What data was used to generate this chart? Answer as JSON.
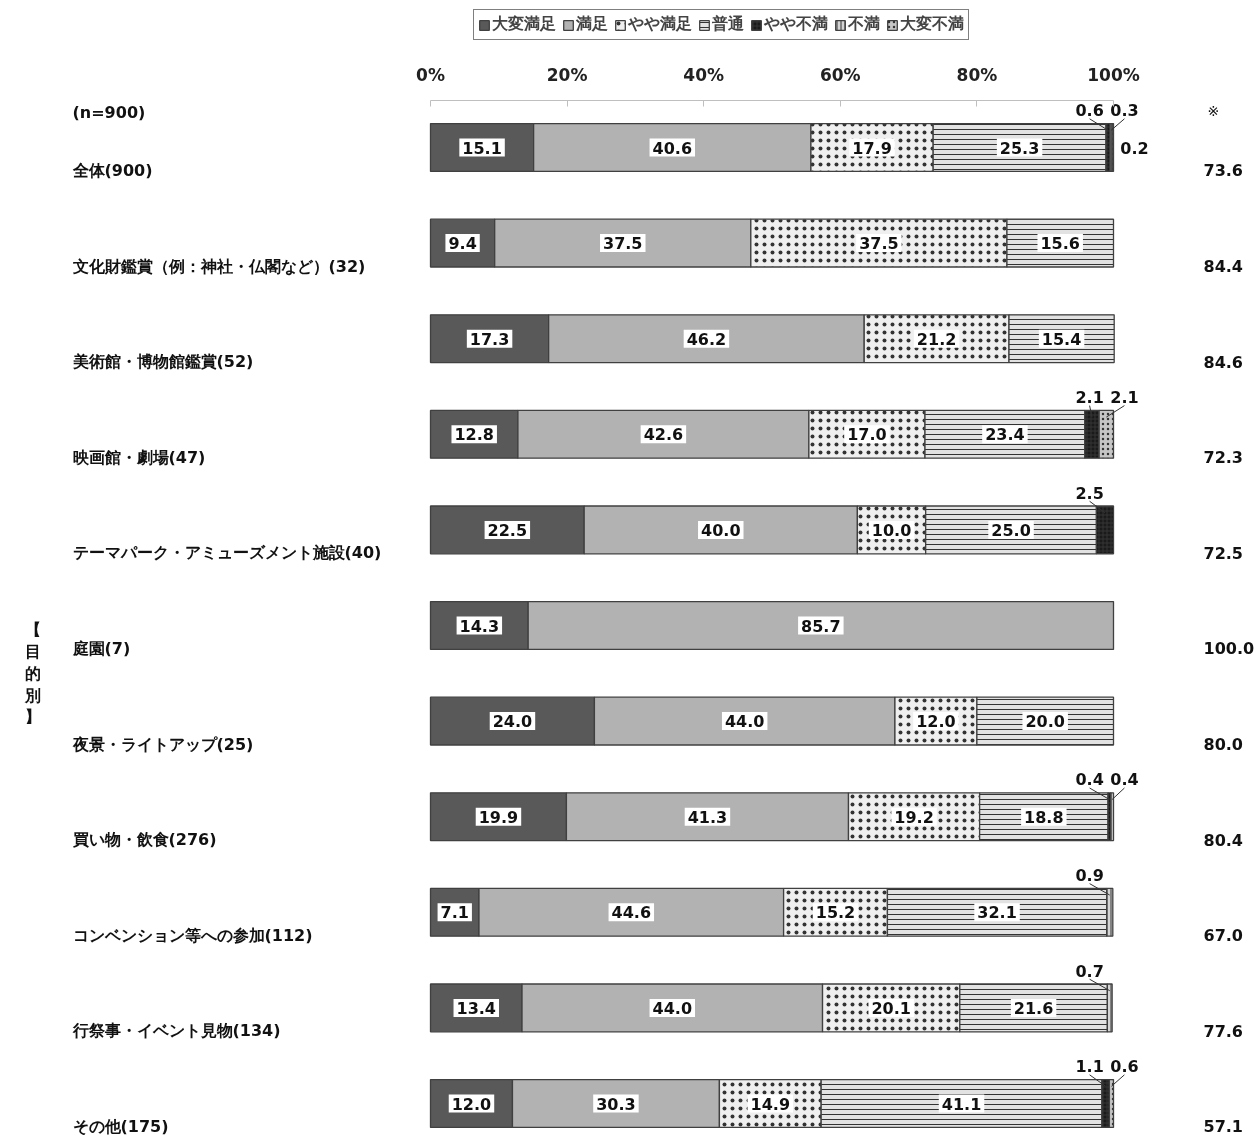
{
  "chart_data": {
    "type": "bar",
    "orientation": "horizontal",
    "stacked": true,
    "categories": [
      "全体(900)",
      "文化財鑑賞（例：神社・仏閣など）(32)",
      "美術館・博物館鑑賞(52)",
      "映画館・劇場(47)",
      "テーマパーク・アミューズメント施設(40)",
      "庭園(7)",
      "夜景・ライトアップ(25)",
      "買い物・飲食(276)",
      "コンベンション等への参加(112)",
      "行祭事・イベント見物(134)",
      "その他(175)"
    ],
    "series": [
      {
        "name": "大変満足",
        "color": "#595959",
        "values": [
          15.1,
          9.4,
          17.3,
          12.8,
          22.5,
          14.3,
          24.0,
          19.9,
          7.1,
          13.4,
          12.0
        ],
        "value_labels": [
          "15.1",
          "9.4",
          "17.3",
          "12.8",
          "22.5",
          "14.3",
          "24.0",
          "19.9",
          "7.1",
          "13.4",
          "12.0"
        ]
      },
      {
        "name": "満足",
        "color": "#b2b2b2",
        "values": [
          40.6,
          37.5,
          46.2,
          42.6,
          40.0,
          85.7,
          44.0,
          41.3,
          44.6,
          44.0,
          30.3
        ],
        "value_labels": [
          "40.6",
          "37.5",
          "46.2",
          "42.6",
          "40.0",
          "85.7",
          "44.0",
          "41.3",
          "44.6",
          "44.0",
          "30.3"
        ]
      },
      {
        "name": "やや満足",
        "color": "#efefef",
        "values": [
          17.9,
          37.5,
          21.2,
          17.0,
          10.0,
          null,
          12.0,
          19.2,
          15.2,
          20.1,
          14.9
        ],
        "value_labels": [
          "17.9",
          "37.5",
          "21.2",
          "17.0",
          "10.0",
          null,
          "12.0",
          "19.2",
          "15.2",
          "20.1",
          "14.9"
        ]
      },
      {
        "name": "普通",
        "color": "#e2e2e2",
        "values": [
          25.3,
          15.6,
          15.4,
          23.4,
          25.0,
          null,
          20.0,
          18.8,
          32.1,
          21.6,
          41.1
        ],
        "value_labels": [
          "25.3",
          "15.6",
          "15.4",
          "23.4",
          "25.0",
          null,
          "20.0",
          "18.8",
          "32.1",
          "21.6",
          "41.1"
        ]
      },
      {
        "name": "やや不満",
        "color": "#1a1a1a",
        "values": [
          0.6,
          null,
          null,
          2.1,
          2.5,
          null,
          null,
          0.4,
          null,
          null,
          1.1
        ],
        "value_labels": [
          "0.6",
          null,
          null,
          "2.1",
          "2.5",
          null,
          null,
          "0.4",
          null,
          null,
          "1.1"
        ]
      },
      {
        "name": "不満",
        "color": "#d4d4d4",
        "values": [
          0.3,
          null,
          null,
          null,
          null,
          null,
          null,
          0.4,
          0.9,
          0.7,
          null
        ],
        "value_labels": [
          "0.3",
          null,
          null,
          null,
          null,
          null,
          null,
          "0.4",
          "0.9",
          "0.7",
          null
        ]
      },
      {
        "name": "大変不満",
        "color": "#c6c6c6",
        "values": [
          0.2,
          null,
          null,
          2.1,
          null,
          null,
          null,
          null,
          null,
          null,
          0.6
        ],
        "value_labels": [
          "0.2",
          null,
          null,
          "2.1",
          null,
          null,
          null,
          null,
          null,
          null,
          "0.6"
        ]
      }
    ],
    "xlim": [
      0,
      100
    ],
    "xticks": [
      {
        "value": 0,
        "label": "0%"
      },
      {
        "value": 20,
        "label": "20%"
      },
      {
        "value": 40,
        "label": "40%"
      },
      {
        "value": 60,
        "label": "60%"
      },
      {
        "value": 80,
        "label": "80%"
      },
      {
        "value": 100,
        "label": "100%"
      }
    ],
    "grid": false,
    "legend": "top",
    "annotations": [
      "(n=900)",
      "※",
      "【目的別】",
      "73.6",
      "84.4",
      "84.6",
      "72.3",
      "72.5",
      "100.0",
      "80.0",
      "80.4",
      "67.0",
      "77.6",
      "57.1"
    ]
  }
}
